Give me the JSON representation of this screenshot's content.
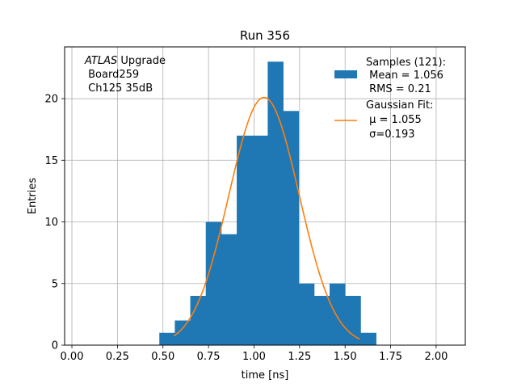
{
  "chart_data": {
    "type": "bar",
    "title": "Run 356",
    "xlabel": "time [ns]",
    "ylabel": "Entries",
    "xlim": [
      -0.04,
      2.16
    ],
    "ylim": [
      0,
      24.2
    ],
    "grid": true,
    "xticks": [
      0.0,
      0.25,
      0.5,
      0.75,
      1.0,
      1.25,
      1.5,
      1.75,
      2.0
    ],
    "xtick_labels": [
      "0.00",
      "0.25",
      "0.50",
      "0.75",
      "1.00",
      "1.25",
      "1.50",
      "1.75",
      "2.00"
    ],
    "yticks": [
      0,
      5,
      10,
      15,
      20
    ],
    "ytick_labels": [
      "0",
      "5",
      "10",
      "15",
      "20"
    ],
    "histogram": {
      "bin_edges": [
        0.48,
        0.565,
        0.65,
        0.735,
        0.82,
        0.905,
        0.99,
        1.075,
        1.16,
        1.245,
        1.33,
        1.415,
        1.5,
        1.585,
        1.67
      ],
      "counts": [
        1,
        2,
        4,
        10,
        9,
        17,
        17,
        23,
        19,
        5,
        4,
        5,
        4,
        1
      ],
      "color": "#1f77b4"
    },
    "fit": {
      "model": "gaussian",
      "mu": 1.055,
      "sigma": 0.193,
      "peak": 20.1,
      "x_range": [
        0.56,
        1.58
      ],
      "color": "#ff7f0e"
    },
    "legend": {
      "position": "top-right",
      "entries": [
        {
          "kind": "patch",
          "lines": [
            "Samples (121):",
            " Mean = 1.056",
            " RMS = 0.21"
          ]
        },
        {
          "kind": "line",
          "lines": [
            "Gaussian Fit:",
            " μ = 1.055",
            " σ=0.193"
          ]
        }
      ]
    },
    "annotation": {
      "position": "top-left",
      "experiment": "ATLAS",
      "line1_rest": " Upgrade",
      "line2": " Board259",
      "line3": " Ch125 35dB"
    }
  }
}
